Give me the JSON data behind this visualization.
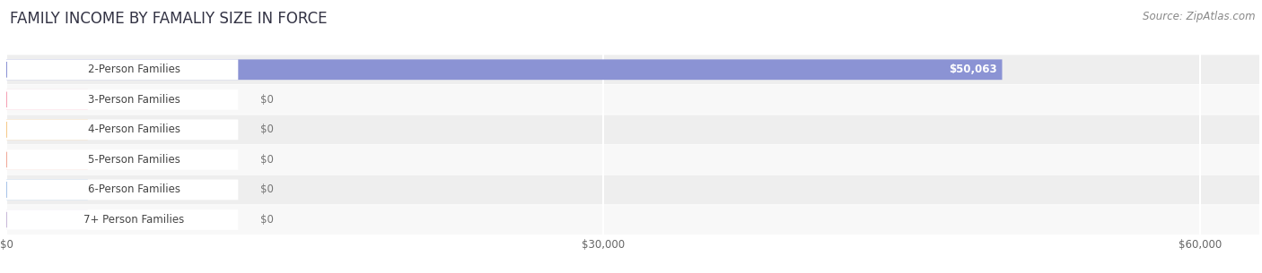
{
  "title": "FAMILY INCOME BY FAMALIY SIZE IN FORCE",
  "source": "Source: ZipAtlas.com",
  "categories": [
    "2-Person Families",
    "3-Person Families",
    "4-Person Families",
    "5-Person Families",
    "6-Person Families",
    "7+ Person Families"
  ],
  "values": [
    50063,
    0,
    0,
    0,
    0,
    0
  ],
  "bar_colors": [
    "#8b93d4",
    "#f5a0b5",
    "#f5c98a",
    "#f0a898",
    "#a8c4e8",
    "#c8b8d8"
  ],
  "bar_labels": [
    "$50,063",
    "$0",
    "$0",
    "$0",
    "$0",
    "$0"
  ],
  "xlim": [
    0,
    63000
  ],
  "xticks": [
    0,
    30000,
    60000
  ],
  "xticklabels": [
    "$0",
    "$30,000",
    "$60,000"
  ],
  "bg_color": "#ffffff",
  "title_fontsize": 12,
  "source_fontsize": 8.5,
  "label_fontsize": 8.5,
  "value_fontsize": 8.5
}
